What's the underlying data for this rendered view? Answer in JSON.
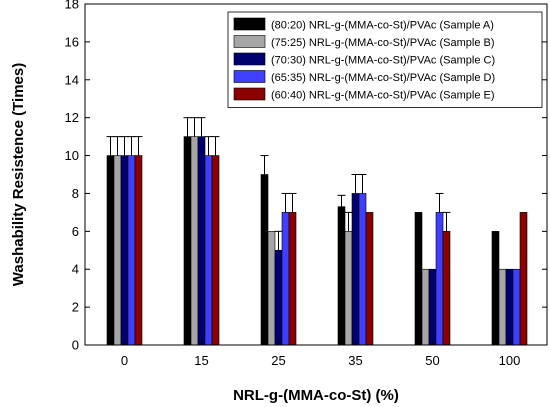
{
  "chart_data": {
    "type": "bar",
    "xlabel": "NRL-g-(MMA-co-St) (%)",
    "ylabel": "Washability Resistence (Times)",
    "ylim": [
      0,
      18
    ],
    "yticks": [
      0,
      2,
      4,
      6,
      8,
      10,
      12,
      14,
      16,
      18
    ],
    "categories": [
      "0",
      "15",
      "25",
      "35",
      "50",
      "100"
    ],
    "legend_placement": "top-right",
    "grid": false,
    "error_bars": true,
    "series": [
      {
        "name": "(80:20) NRL-g-(MMA-co-St)/PVAc (Sample A)",
        "color": "#000000",
        "values": [
          10,
          11,
          9,
          7.3,
          7,
          6
        ],
        "errors": [
          1,
          1,
          1,
          0.6,
          0,
          0
        ]
      },
      {
        "name": "(75:25) NRL-g-(MMA-co-St)/PVAc (Sample B)",
        "color": "#a6a6a6",
        "values": [
          10,
          11,
          6,
          6,
          4,
          4
        ],
        "errors": [
          1,
          1,
          0,
          1,
          0,
          0
        ]
      },
      {
        "name": "(70:30) NRL-g-(MMA-co-St)/PVAc (Sample C)",
        "color": "#00006e",
        "values": [
          10,
          11,
          5,
          8,
          4,
          4
        ],
        "errors": [
          1,
          1,
          1,
          1,
          0,
          0
        ]
      },
      {
        "name": "(65:35) NRL-g-(MMA-co-St)/PVAc (Sample D)",
        "color": "#3f3fff",
        "values": [
          10,
          10,
          7,
          8,
          7,
          4
        ],
        "errors": [
          1,
          1,
          1,
          1,
          1,
          0
        ]
      },
      {
        "name": "(60:40) NRL-g-(MMA-co-St)/PVAc (Sample E)",
        "color": "#8b0000",
        "values": [
          10,
          10,
          7,
          7,
          6,
          7
        ],
        "errors": [
          1,
          1,
          1,
          0,
          1,
          0
        ]
      }
    ]
  }
}
